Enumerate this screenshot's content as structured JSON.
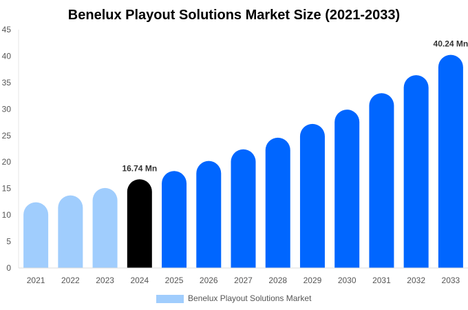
{
  "chart_data": {
    "type": "bar",
    "title": "Benelux Playout Solutions Market Size (2021-2033)",
    "xlabel": "",
    "ylabel": "",
    "ylim": [
      0,
      45
    ],
    "yticks": [
      0,
      5,
      10,
      15,
      20,
      25,
      30,
      35,
      40,
      45
    ],
    "grid": false,
    "legend_position": "bottom",
    "categories": [
      "2021",
      "2022",
      "2023",
      "2024",
      "2025",
      "2026",
      "2027",
      "2028",
      "2029",
      "2030",
      "2031",
      "2032",
      "2033"
    ],
    "series": [
      {
        "name": "Benelux Playout Solutions Market",
        "values": [
          12.4,
          13.7,
          15.1,
          16.74,
          18.3,
          20.2,
          22.4,
          24.6,
          27.2,
          29.9,
          33.0,
          36.4,
          40.24
        ]
      }
    ],
    "data_labels": [
      {
        "category": "2024",
        "text": "16.74 Mn"
      },
      {
        "category": "2033",
        "text": "40.24 Mn"
      }
    ],
    "colors": {
      "historical": "#a0cdfd",
      "base_year": "#000000",
      "forecast": "#0066ff",
      "legend": "#a0cdfd"
    }
  }
}
